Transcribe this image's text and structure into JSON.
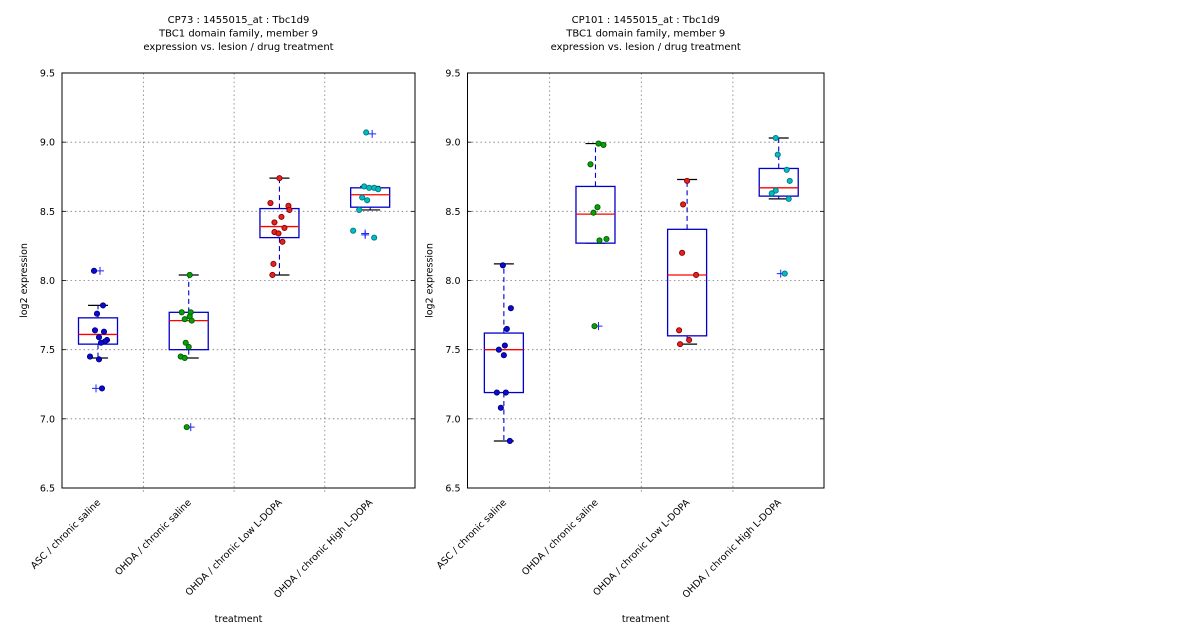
{
  "page": {
    "background": "#ffffff"
  },
  "styles": {
    "box_color": "#0000cc",
    "median_color": "#ff0000",
    "whisker_color": "#0000cc",
    "cap_color": "#000000",
    "flier_color": "#2222ff",
    "grid_color": "#7a7a7a",
    "frame_color": "#000000"
  },
  "chart_data": [
    {
      "id": "cp73",
      "type": "boxplot",
      "title_lines": [
        "CP73 : 1455015_at : Tbc1d9",
        "TBC1 domain family, member 9",
        "expression vs. lesion / drug treatment"
      ],
      "xlabel": "treatment",
      "ylabel": "log2 expression",
      "ylim": [
        6.5,
        9.5
      ],
      "yticks": [
        6.5,
        7.0,
        7.5,
        8.0,
        8.5,
        9.0,
        9.5
      ],
      "grid_yticks": [
        7.0,
        7.5,
        8.0,
        8.5,
        9.0
      ],
      "grid": true,
      "categories": [
        "ASC / chronic saline",
        "OHDA / chronic saline",
        "OHDA / chronic Low L-DOPA",
        "OHDA / chronic High L-DOPA"
      ],
      "groups": [
        {
          "category": "ASC / chronic saline",
          "color": "#0a0ad2",
          "edge": "#000080",
          "box": {
            "q1": 7.54,
            "median": 7.61,
            "q3": 7.73,
            "whisker_low": 7.44,
            "whisker_high": 7.82
          },
          "points": [
            {
              "v": 8.07,
              "dx": -4
            },
            {
              "v": 7.82,
              "dx": 5
            },
            {
              "v": 7.76,
              "dx": -1
            },
            {
              "v": 7.64,
              "dx": -3
            },
            {
              "v": 7.63,
              "dx": 6
            },
            {
              "v": 7.59,
              "dx": 1
            },
            {
              "v": 7.57,
              "dx": 9
            },
            {
              "v": 7.56,
              "dx": 7
            },
            {
              "v": 7.55,
              "dx": 3
            },
            {
              "v": 7.45,
              "dx": -8
            },
            {
              "v": 7.43,
              "dx": 1
            },
            {
              "v": 7.22,
              "dx": 4
            }
          ],
          "fliers": [
            {
              "v": 8.07,
              "dx": 2
            },
            {
              "v": 7.22,
              "dx": -2
            }
          ]
        },
        {
          "category": "OHDA / chronic saline",
          "color": "#08a008",
          "edge": "#025c02",
          "box": {
            "q1": 7.5,
            "median": 7.71,
            "q3": 7.77,
            "whisker_low": 7.44,
            "whisker_high": 8.04
          },
          "points": [
            {
              "v": 8.04,
              "dx": 1
            },
            {
              "v": 7.77,
              "dx": -7
            },
            {
              "v": 7.77,
              "dx": 2
            },
            {
              "v": 7.74,
              "dx": 1
            },
            {
              "v": 7.72,
              "dx": -4
            },
            {
              "v": 7.71,
              "dx": 3
            },
            {
              "v": 7.55,
              "dx": -3
            },
            {
              "v": 7.52,
              "dx": 0
            },
            {
              "v": 7.45,
              "dx": -8
            },
            {
              "v": 7.44,
              "dx": -4
            },
            {
              "v": 6.94,
              "dx": -2
            }
          ],
          "fliers": [
            {
              "v": 6.94,
              "dx": 2
            }
          ]
        },
        {
          "category": "OHDA / chronic Low L-DOPA",
          "color": "#e32222",
          "edge": "#8b0000",
          "box": {
            "q1": 8.31,
            "median": 8.39,
            "q3": 8.52,
            "whisker_low": 8.04,
            "whisker_high": 8.74
          },
          "points": [
            {
              "v": 8.74,
              "dx": 0
            },
            {
              "v": 8.56,
              "dx": -9
            },
            {
              "v": 8.54,
              "dx": 9
            },
            {
              "v": 8.51,
              "dx": 10
            },
            {
              "v": 8.46,
              "dx": 2
            },
            {
              "v": 8.42,
              "dx": -5
            },
            {
              "v": 8.38,
              "dx": 5
            },
            {
              "v": 8.35,
              "dx": -5
            },
            {
              "v": 8.34,
              "dx": -1
            },
            {
              "v": 8.28,
              "dx": 3
            },
            {
              "v": 8.12,
              "dx": -6
            },
            {
              "v": 8.04,
              "dx": -7
            }
          ],
          "fliers": []
        },
        {
          "category": "OHDA / chronic High L-DOPA",
          "color": "#00bcc4",
          "edge": "#00777d",
          "box": {
            "q1": 8.53,
            "median": 8.62,
            "q3": 8.67,
            "whisker_low": 8.51,
            "whisker_high": 8.68
          },
          "points": [
            {
              "v": 9.07,
              "dx": -4
            },
            {
              "v": 8.68,
              "dx": -6
            },
            {
              "v": 8.67,
              "dx": -1
            },
            {
              "v": 8.67,
              "dx": 4
            },
            {
              "v": 8.66,
              "dx": 8
            },
            {
              "v": 8.6,
              "dx": -8
            },
            {
              "v": 8.58,
              "dx": -3
            },
            {
              "v": 8.51,
              "dx": -11
            },
            {
              "v": 8.36,
              "dx": -17
            },
            {
              "v": 8.31,
              "dx": 4
            }
          ],
          "fliers": [
            {
              "v": 9.06,
              "dx": 2
            },
            {
              "v": 8.34,
              "dx": -5
            },
            {
              "v": 8.33,
              "dx": -5
            }
          ]
        }
      ]
    },
    {
      "id": "cp101",
      "type": "boxplot",
      "title_lines": [
        "CP101 : 1455015_at : Tbc1d9",
        "TBC1 domain family, member 9",
        "expression vs. lesion / drug treatment"
      ],
      "xlabel": "treatment",
      "ylabel": "log2 expression",
      "ylim": [
        6.5,
        9.5
      ],
      "yticks": [
        6.5,
        7.0,
        7.5,
        8.0,
        8.5,
        9.0,
        9.5
      ],
      "grid_yticks": [
        7.0,
        7.5,
        8.0,
        8.5,
        9.0
      ],
      "grid": true,
      "categories": [
        "ASC / chronic saline",
        "OHDA / chronic saline",
        "OHDA / chronic Low L-DOPA",
        "OHDA / chronic High L-DOPA"
      ],
      "groups": [
        {
          "category": "ASC / chronic saline",
          "color": "#0a0ad2",
          "edge": "#000080",
          "box": {
            "q1": 7.19,
            "median": 7.5,
            "q3": 7.62,
            "whisker_low": 6.84,
            "whisker_high": 8.12
          },
          "points": [
            {
              "v": 8.11,
              "dx": -1
            },
            {
              "v": 7.8,
              "dx": 7
            },
            {
              "v": 7.65,
              "dx": 3
            },
            {
              "v": 7.53,
              "dx": 1
            },
            {
              "v": 7.5,
              "dx": -5
            },
            {
              "v": 7.46,
              "dx": 0
            },
            {
              "v": 7.19,
              "dx": -7
            },
            {
              "v": 7.19,
              "dx": 2
            },
            {
              "v": 7.08,
              "dx": -3
            },
            {
              "v": 6.84,
              "dx": 6
            }
          ],
          "fliers": []
        },
        {
          "category": "OHDA / chronic saline",
          "color": "#08a008",
          "edge": "#025c02",
          "box": {
            "q1": 8.27,
            "median": 8.48,
            "q3": 8.68,
            "whisker_low": 8.27,
            "whisker_high": 8.99
          },
          "points": [
            {
              "v": 8.99,
              "dx": 3
            },
            {
              "v": 8.98,
              "dx": 8
            },
            {
              "v": 8.84,
              "dx": -5
            },
            {
              "v": 8.53,
              "dx": 2
            },
            {
              "v": 8.49,
              "dx": -2
            },
            {
              "v": 8.3,
              "dx": 11
            },
            {
              "v": 8.29,
              "dx": 4
            },
            {
              "v": 7.67,
              "dx": -1
            }
          ],
          "fliers": [
            {
              "v": 7.67,
              "dx": 3
            }
          ]
        },
        {
          "category": "OHDA / chronic Low L-DOPA",
          "color": "#e32222",
          "edge": "#8b0000",
          "box": {
            "q1": 7.6,
            "median": 8.04,
            "q3": 8.37,
            "whisker_low": 7.54,
            "whisker_high": 8.73
          },
          "points": [
            {
              "v": 8.72,
              "dx": 0
            },
            {
              "v": 8.55,
              "dx": -4
            },
            {
              "v": 8.2,
              "dx": -5
            },
            {
              "v": 8.04,
              "dx": 9
            },
            {
              "v": 7.64,
              "dx": -8
            },
            {
              "v": 7.57,
              "dx": 2
            },
            {
              "v": 7.54,
              "dx": -7
            }
          ],
          "fliers": []
        },
        {
          "category": "OHDA / chronic High L-DOPA",
          "color": "#00bcc4",
          "edge": "#00777d",
          "box": {
            "q1": 8.61,
            "median": 8.67,
            "q3": 8.81,
            "whisker_low": 8.59,
            "whisker_high": 9.03
          },
          "points": [
            {
              "v": 9.03,
              "dx": -3
            },
            {
              "v": 8.91,
              "dx": -1
            },
            {
              "v": 8.8,
              "dx": 8
            },
            {
              "v": 8.72,
              "dx": 11
            },
            {
              "v": 8.65,
              "dx": -3
            },
            {
              "v": 8.63,
              "dx": -7
            },
            {
              "v": 8.59,
              "dx": 10
            },
            {
              "v": 8.05,
              "dx": 6
            }
          ],
          "fliers": [
            {
              "v": 8.05,
              "dx": 2
            }
          ]
        }
      ]
    }
  ]
}
